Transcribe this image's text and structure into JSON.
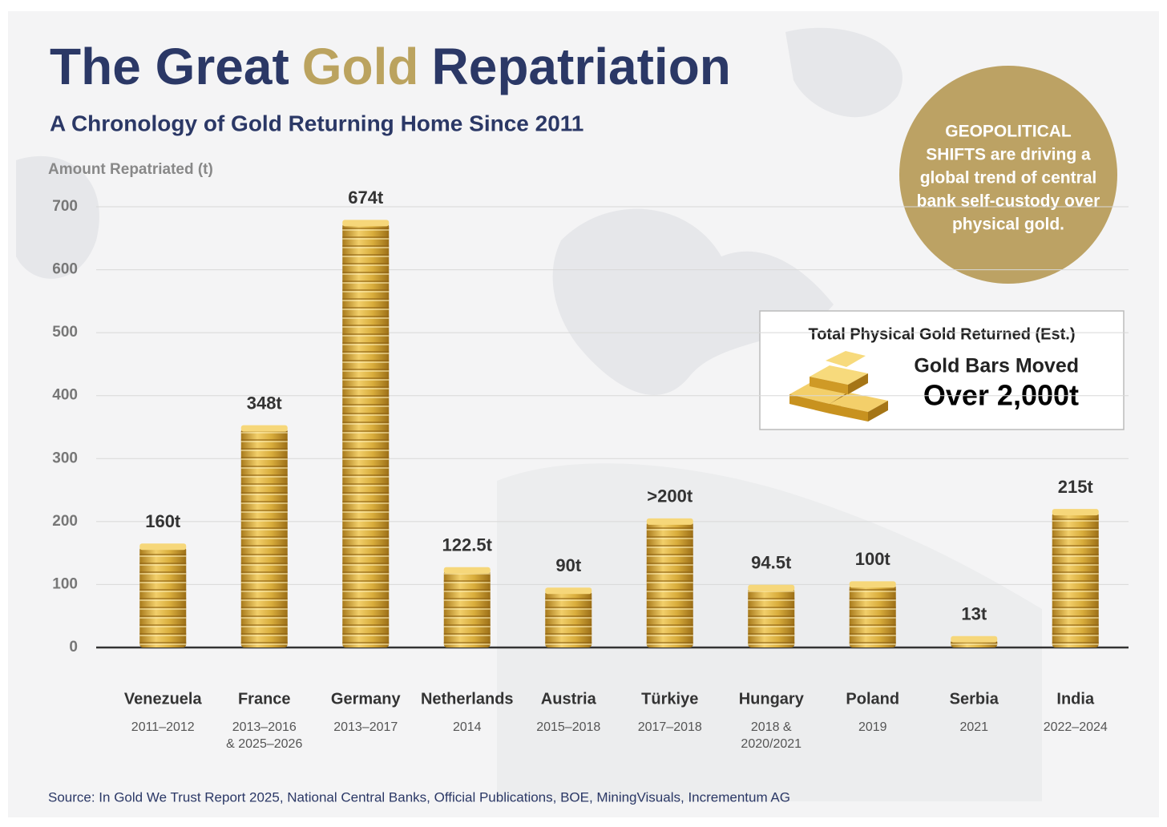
{
  "chart_data": {
    "type": "bar",
    "title_parts": [
      "The Great",
      "Gold",
      "Repatriation"
    ],
    "title_colors": [
      "#2b3866",
      "#bba35f",
      "#2b3866"
    ],
    "subtitle": "A Chronology of Gold Returning Home Since 2011",
    "ylabel": "Amount Repatriated (t)",
    "categories": [
      "Venezuela",
      "France",
      "Germany",
      "Netherlands",
      "Austria",
      "Türkiye",
      "Hungary",
      "Poland",
      "Serbia",
      "India"
    ],
    "periods": [
      [
        "2011–2012"
      ],
      [
        "2013–2016",
        "& 2025–2026"
      ],
      [
        "2013–2017"
      ],
      [
        "2014"
      ],
      [
        "2015–2018"
      ],
      [
        "2017–2018"
      ],
      [
        "2018 &",
        "2020/2021"
      ],
      [
        "2019"
      ],
      [
        "2021"
      ],
      [
        "2022–2024"
      ]
    ],
    "values": [
      160,
      348,
      674,
      122.5,
      90,
      200,
      94.5,
      100,
      13,
      215
    ],
    "value_labels": [
      "160t",
      "348t",
      "674t",
      "122.5t",
      "90t",
      ">200t",
      "94.5t",
      "100t",
      "13t",
      "215t"
    ],
    "color": "#d9ad3c",
    "ylim": [
      0,
      700
    ],
    "yticks": [
      0,
      100,
      200,
      300,
      400,
      500,
      600,
      700
    ],
    "grid": true,
    "annotation": [
      "GEOPOLITICAL",
      "SHIFTS are driving a",
      "global trend of central",
      "bank self-custody over",
      "physical gold."
    ],
    "callout": {
      "heading": "Total Physical Gold Returned (Est.)",
      "label": "Gold Bars Moved",
      "value": "Over 2,000t"
    },
    "source": "Source: In Gold We Trust Report 2025, National Central Banks, Official Publications, BOE, MiningVisuals, Incrementum AG"
  }
}
